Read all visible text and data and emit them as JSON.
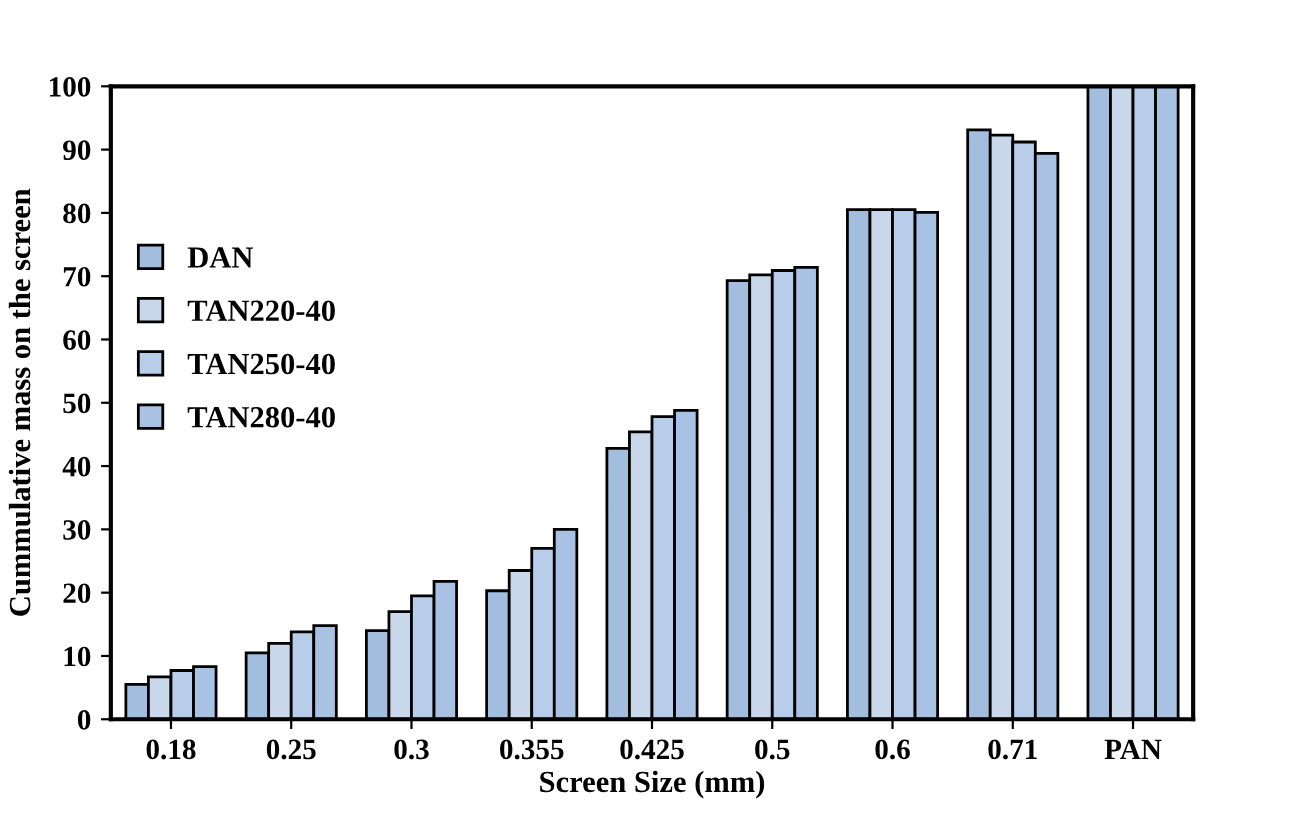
{
  "chart_data": {
    "type": "bar",
    "xlabel": "Screen Size (mm)",
    "ylabel": "Cummulative mass on the screen",
    "categories": [
      "0.18",
      "0.25",
      "0.3",
      "0.355",
      "0.425",
      "0.5",
      "0.6",
      "0.71",
      "PAN"
    ],
    "series": [
      {
        "name": "DAN",
        "color": "#a3bddf",
        "values": [
          5.5,
          10.5,
          14,
          20.3,
          42.8,
          69.3,
          80.5,
          93.1,
          100
        ]
      },
      {
        "name": "TAN220-40",
        "color": "#c9d7ea",
        "values": [
          6.7,
          12,
          17,
          23.5,
          45.4,
          70.2,
          80.5,
          92.3,
          100
        ]
      },
      {
        "name": "TAN250-40",
        "color": "#b8cdea",
        "values": [
          7.7,
          13.8,
          19.5,
          27,
          47.8,
          70.9,
          80.5,
          91.2,
          100
        ]
      },
      {
        "name": "TAN280-40",
        "color": "#a9c1e2",
        "values": [
          8.3,
          14.8,
          21.8,
          30,
          48.8,
          71.4,
          80.1,
          89.4,
          100
        ]
      }
    ],
    "ylim": [
      0,
      100
    ],
    "yticks": [
      0,
      10,
      20,
      30,
      40,
      50,
      60,
      70,
      80,
      90,
      100
    ],
    "grid": false,
    "legend": "center left"
  }
}
